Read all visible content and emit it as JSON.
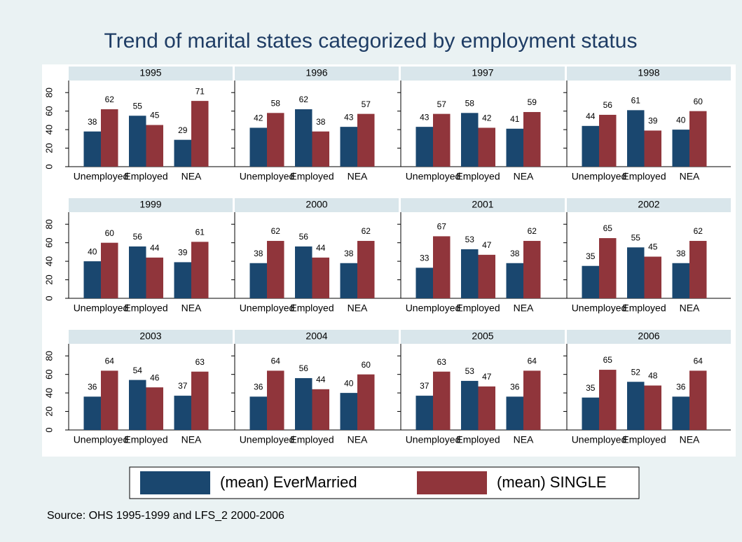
{
  "chart_data": {
    "type": "bar",
    "title": "Trend of marital states categorized by employment status",
    "note": "Source: OHS 1995-1999 and LFS_2 2000-2006",
    "categories": [
      "Unemployed",
      "Employed",
      "NEA"
    ],
    "series": [
      {
        "name": "(mean) EverMarried",
        "color": "#1a476f"
      },
      {
        "name": "(mean) SINGLE",
        "color": "#90353b"
      }
    ],
    "ylim": [
      0,
      90
    ],
    "yticks": [
      0,
      20,
      40,
      60,
      80
    ],
    "panels": [
      {
        "title": "1995",
        "series": [
          {
            "values": [
              38,
              55,
              29
            ]
          },
          {
            "values": [
              62,
              45,
              71
            ]
          }
        ]
      },
      {
        "title": "1996",
        "series": [
          {
            "values": [
              42,
              62,
              43
            ]
          },
          {
            "values": [
              58,
              38,
              57
            ]
          }
        ]
      },
      {
        "title": "1997",
        "series": [
          {
            "values": [
              43,
              58,
              41
            ]
          },
          {
            "values": [
              57,
              42,
              59
            ]
          }
        ]
      },
      {
        "title": "1998",
        "series": [
          {
            "values": [
              44,
              61,
              40
            ]
          },
          {
            "values": [
              56,
              39,
              60
            ]
          }
        ]
      },
      {
        "title": "1999",
        "series": [
          {
            "values": [
              40,
              56,
              39
            ]
          },
          {
            "values": [
              60,
              44,
              61
            ]
          }
        ]
      },
      {
        "title": "2000",
        "series": [
          {
            "values": [
              38,
              56,
              38
            ]
          },
          {
            "values": [
              62,
              44,
              62
            ]
          }
        ]
      },
      {
        "title": "2001",
        "series": [
          {
            "values": [
              33,
              53,
              38
            ]
          },
          {
            "values": [
              67,
              47,
              62
            ]
          }
        ]
      },
      {
        "title": "2002",
        "series": [
          {
            "values": [
              35,
              55,
              38
            ]
          },
          {
            "values": [
              65,
              45,
              62
            ]
          }
        ]
      },
      {
        "title": "2003",
        "series": [
          {
            "values": [
              36,
              54,
              37
            ]
          },
          {
            "values": [
              64,
              46,
              63
            ]
          }
        ]
      },
      {
        "title": "2004",
        "series": [
          {
            "values": [
              36,
              56,
              40
            ]
          },
          {
            "values": [
              64,
              44,
              60
            ]
          }
        ]
      },
      {
        "title": "2005",
        "series": [
          {
            "values": [
              37,
              53,
              36
            ]
          },
          {
            "values": [
              63,
              47,
              64
            ]
          }
        ]
      },
      {
        "title": "2006",
        "series": [
          {
            "values": [
              35,
              52,
              36
            ]
          },
          {
            "values": [
              65,
              48,
              64
            ]
          }
        ]
      }
    ]
  }
}
